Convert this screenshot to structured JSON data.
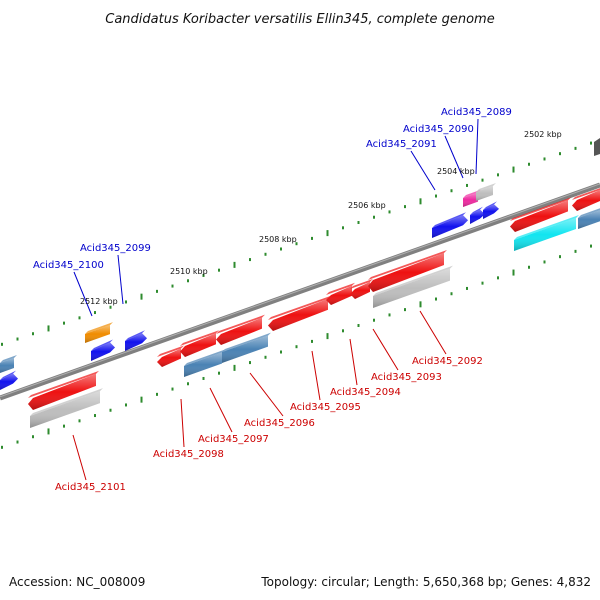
{
  "title": "Candidatus Koribacter versatilis Ellin345, complete genome",
  "footer": {
    "accession": "Accession: NC_008009",
    "summary": "Topology: circular; Length: 5,650,368 bp; Genes: 4,832"
  },
  "colors": {
    "backbone": "#808080",
    "tick_dot": "#2e8b2e",
    "label_forward": "#0000cc",
    "label_reverse": "#cc0000",
    "gene_red": "#ee1111",
    "gene_blue": "#1111ee",
    "gene_steel": "#4a82b4",
    "gene_grey": "#bdbdbd",
    "gene_cyan": "#11e5f0",
    "gene_orange": "#f08c00",
    "gene_magenta": "#ee2aa0"
  },
  "ticks": [
    {
      "label": "2502 kbp"
    },
    {
      "label": "2504 kbp"
    },
    {
      "label": "2506 kbp"
    },
    {
      "label": "2508 kbp"
    },
    {
      "label": "2510 kbp"
    },
    {
      "label": "2512 kbp"
    }
  ],
  "labels": {
    "forward": [
      "Acid345_2089",
      "Acid345_2090",
      "Acid345_2091",
      "Acid345_2099",
      "Acid345_2100"
    ],
    "reverse": [
      "Acid345_2092",
      "Acid345_2093",
      "Acid345_2094",
      "Acid345_2095",
      "Acid345_2096",
      "Acid345_2097",
      "Acid345_2098",
      "Acid345_2101"
    ]
  }
}
